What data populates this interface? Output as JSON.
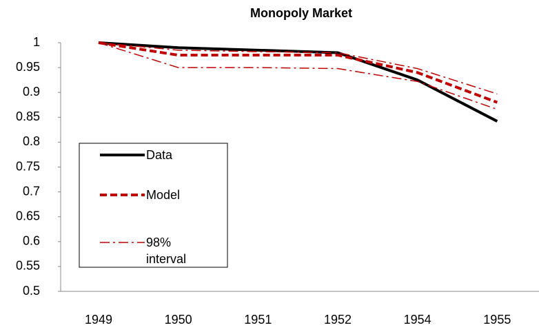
{
  "chart_data": {
    "type": "line",
    "title": "Monopoly Market",
    "categories": [
      "1949",
      "1950",
      "1951",
      "1952",
      "1954",
      "1955"
    ],
    "series": [
      {
        "name": "Data",
        "color": "#000000",
        "line_style": "solid",
        "values": [
          1.0,
          0.99,
          0.985,
          0.98,
          0.925,
          0.842
        ]
      },
      {
        "name": "Model",
        "color": "#c00000",
        "line_style": "dashed",
        "values": [
          1.0,
          0.975,
          0.975,
          0.975,
          0.94,
          0.88
        ]
      },
      {
        "name": "98% interval",
        "color": "#c00000",
        "line_style": "dashdot",
        "lower": [
          1.0,
          0.95,
          0.95,
          0.948,
          0.922,
          0.866
        ],
        "upper": [
          1.0,
          0.985,
          0.982,
          0.98,
          0.948,
          0.897
        ]
      }
    ],
    "ylim": [
      0.5,
      1
    ],
    "yticks": [
      0.5,
      0.55,
      0.6,
      0.65,
      0.7,
      0.75,
      0.8,
      0.85,
      0.9,
      0.95,
      1
    ],
    "grid": false,
    "legend": "lower-left"
  }
}
